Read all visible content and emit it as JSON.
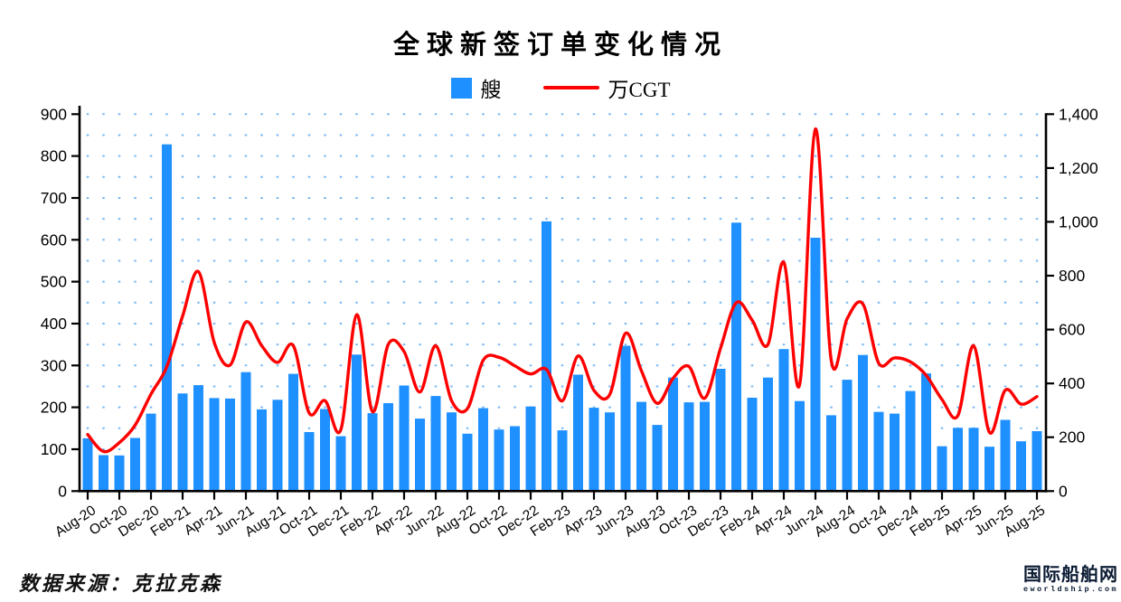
{
  "title": "全球新签订单变化情况",
  "legend": {
    "bars_label": "艘",
    "line_label": "万CGT"
  },
  "source_note": "数据来源：克拉克森",
  "logo": {
    "name": "国际船舶网",
    "domain": "eworldship.com"
  },
  "colors": {
    "bar": "#1E90FF",
    "line": "#FF0000",
    "grid_dot": "#79B8F4",
    "axis": "#000000",
    "text": "#000000",
    "logo": "#0B1B33"
  },
  "chart_data": {
    "type": "bar+line",
    "title": "全球新签订单变化情况",
    "series": [
      {
        "name": "艘",
        "type": "bar",
        "axis": "left"
      },
      {
        "name": "万CGT",
        "type": "line",
        "axis": "right"
      }
    ],
    "left_axis": {
      "min": 0,
      "max": 900,
      "step": 100,
      "tick_labels": [
        "0",
        "100",
        "200",
        "300",
        "400",
        "500",
        "600",
        "700",
        "800",
        "900"
      ]
    },
    "right_axis": {
      "min": 0,
      "max": 1400,
      "step": 200,
      "tick_labels": [
        "0",
        "200",
        "400",
        "600",
        "800",
        "1,000",
        "1,200",
        "1,400"
      ]
    },
    "x_tick_labels": [
      "Aug-20",
      "Oct-20",
      "Dec-20",
      "Feb-21",
      "Apr-21",
      "Jun-21",
      "Aug-21",
      "Oct-21",
      "Dec-21",
      "Feb-22",
      "Apr-22",
      "Jun-22",
      "Aug-22",
      "Oct-22",
      "Dec-22",
      "Feb-23",
      "Apr-23",
      "Jun-23",
      "Aug-23",
      "Oct-23",
      "Dec-23",
      "Feb-24",
      "Apr-24",
      "Jun-24",
      "Aug-24",
      "Oct-24",
      "Dec-24",
      "Feb-25",
      "Apr-25",
      "Jun-25",
      "Aug-25"
    ],
    "grid": {
      "horizontal_dotted_every": 50
    },
    "months": [
      {
        "m": "Aug-20",
        "ships": 126,
        "cgt": 210
      },
      {
        "m": "Sep-20",
        "ships": 86,
        "cgt": 147
      },
      {
        "m": "Oct-20",
        "ships": 85,
        "cgt": 180
      },
      {
        "m": "Nov-20",
        "ships": 127,
        "cgt": 245
      },
      {
        "m": "Dec-20",
        "ships": 185,
        "cgt": 360
      },
      {
        "m": "Jan-21",
        "ships": 828,
        "cgt": 462
      },
      {
        "m": "Feb-21",
        "ships": 233,
        "cgt": 650
      },
      {
        "m": "Mar-21",
        "ships": 253,
        "cgt": 815
      },
      {
        "m": "Apr-21",
        "ships": 222,
        "cgt": 552
      },
      {
        "m": "May-21",
        "ships": 221,
        "cgt": 468
      },
      {
        "m": "Jun-21",
        "ships": 284,
        "cgt": 628
      },
      {
        "m": "Jul-21",
        "ships": 195,
        "cgt": 540
      },
      {
        "m": "Aug-21",
        "ships": 218,
        "cgt": 478
      },
      {
        "m": "Sep-21",
        "ships": 280,
        "cgt": 540
      },
      {
        "m": "Oct-21",
        "ships": 141,
        "cgt": 290
      },
      {
        "m": "Nov-21",
        "ships": 196,
        "cgt": 336
      },
      {
        "m": "Dec-21",
        "ships": 131,
        "cgt": 228
      },
      {
        "m": "Jan-22",
        "ships": 326,
        "cgt": 655
      },
      {
        "m": "Feb-22",
        "ships": 186,
        "cgt": 295
      },
      {
        "m": "Mar-22",
        "ships": 210,
        "cgt": 545
      },
      {
        "m": "Apr-22",
        "ships": 252,
        "cgt": 518
      },
      {
        "m": "May-22",
        "ships": 173,
        "cgt": 368
      },
      {
        "m": "Jun-22",
        "ships": 227,
        "cgt": 540
      },
      {
        "m": "Jul-22",
        "ships": 188,
        "cgt": 336
      },
      {
        "m": "Aug-22",
        "ships": 137,
        "cgt": 306
      },
      {
        "m": "Sep-22",
        "ships": 198,
        "cgt": 486
      },
      {
        "m": "Oct-22",
        "ships": 147,
        "cgt": 497
      },
      {
        "m": "Nov-22",
        "ships": 155,
        "cgt": 465
      },
      {
        "m": "Dec-22",
        "ships": 202,
        "cgt": 435
      },
      {
        "m": "Jan-23",
        "ships": 644,
        "cgt": 452
      },
      {
        "m": "Feb-23",
        "ships": 145,
        "cgt": 335
      },
      {
        "m": "Mar-23",
        "ships": 278,
        "cgt": 502
      },
      {
        "m": "Apr-23",
        "ships": 199,
        "cgt": 374
      },
      {
        "m": "May-23",
        "ships": 188,
        "cgt": 359
      },
      {
        "m": "Jun-23",
        "ships": 347,
        "cgt": 586
      },
      {
        "m": "Jul-23",
        "ships": 213,
        "cgt": 447
      },
      {
        "m": "Aug-23",
        "ships": 158,
        "cgt": 326
      },
      {
        "m": "Sep-23",
        "ships": 271,
        "cgt": 419
      },
      {
        "m": "Oct-23",
        "ships": 212,
        "cgt": 463
      },
      {
        "m": "Nov-23",
        "ships": 213,
        "cgt": 345
      },
      {
        "m": "Dec-23",
        "ships": 292,
        "cgt": 530
      },
      {
        "m": "Jan-24",
        "ships": 641,
        "cgt": 700
      },
      {
        "m": "Feb-24",
        "ships": 223,
        "cgt": 635
      },
      {
        "m": "Mar-24",
        "ships": 271,
        "cgt": 545
      },
      {
        "m": "Apr-24",
        "ships": 339,
        "cgt": 850
      },
      {
        "m": "May-24",
        "ships": 215,
        "cgt": 395
      },
      {
        "m": "Jun-24",
        "ships": 605,
        "cgt": 1345
      },
      {
        "m": "Jul-24",
        "ships": 181,
        "cgt": 485
      },
      {
        "m": "Aug-24",
        "ships": 266,
        "cgt": 640
      },
      {
        "m": "Sep-24",
        "ships": 325,
        "cgt": 695
      },
      {
        "m": "Oct-24",
        "ships": 189,
        "cgt": 475
      },
      {
        "m": "Nov-24",
        "ships": 185,
        "cgt": 495
      },
      {
        "m": "Dec-24",
        "ships": 239,
        "cgt": 480
      },
      {
        "m": "Jan-25",
        "ships": 281,
        "cgt": 430
      },
      {
        "m": "Feb-25",
        "ships": 107,
        "cgt": 340
      },
      {
        "m": "Mar-25",
        "ships": 151,
        "cgt": 280
      },
      {
        "m": "Apr-25",
        "ships": 151,
        "cgt": 540
      },
      {
        "m": "May-25",
        "ships": 106,
        "cgt": 218
      },
      {
        "m": "Jun-25",
        "ships": 170,
        "cgt": 375
      },
      {
        "m": "Jul-25",
        "ships": 119,
        "cgt": 323
      },
      {
        "m": "Aug-25",
        "ships": 143,
        "cgt": 351
      }
    ]
  }
}
